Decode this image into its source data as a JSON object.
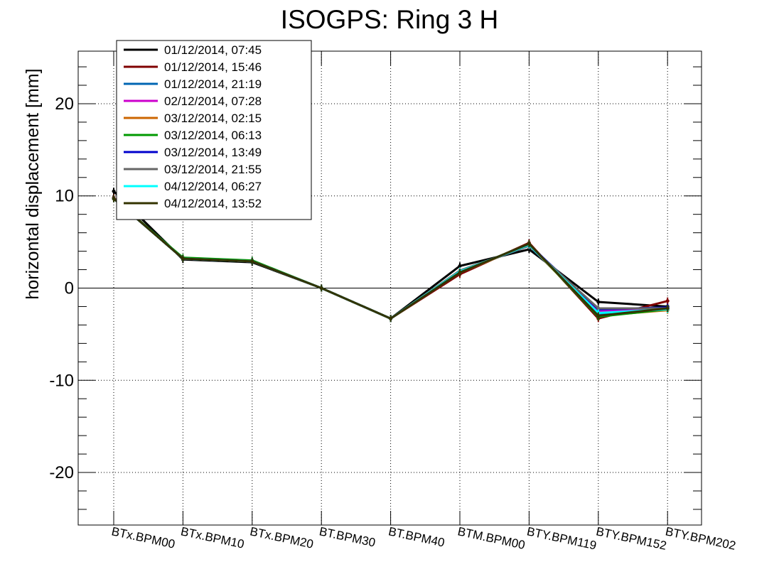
{
  "chart_data": {
    "type": "line",
    "title": "ISOGPS: Ring 3 H",
    "xlabel": "",
    "ylabel": "horizontal displacement [mm]",
    "ylim": [
      -25.7,
      25.7
    ],
    "yticks": [
      -20,
      -10,
      0,
      10,
      20
    ],
    "ytick_labels": [
      "-20",
      "-10",
      "0",
      "10",
      "20"
    ],
    "grid": true,
    "legend_position": "top-left",
    "categories": [
      "BTx.BPM00",
      "BTx.BPM10",
      "BTx.BPM20",
      "BT.BPM30",
      "BT.BPM40",
      "BTM.BPM00",
      "BTY.BPM119",
      "BTY.BPM152",
      "BTY.BPM202"
    ],
    "series": [
      {
        "name": "01/12/2014, 07:45",
        "color": "#000000",
        "values": [
          10.5,
          3.1,
          2.8,
          0.0,
          -3.3,
          2.4,
          4.2,
          -1.5,
          -2.0
        ]
      },
      {
        "name": "01/12/2014, 15:46",
        "color": "#800000",
        "values": [
          9.8,
          3.2,
          2.9,
          0.0,
          -3.3,
          1.5,
          4.9,
          -3.3,
          -1.4
        ]
      },
      {
        "name": "01/12/2014, 21:19",
        "color": "#0066b3",
        "values": [
          9.7,
          3.2,
          2.9,
          0.0,
          -3.3,
          1.8,
          4.6,
          -2.8,
          -2.2
        ]
      },
      {
        "name": "02/12/2014, 07:28",
        "color": "#cc00cc",
        "values": [
          9.7,
          3.2,
          2.9,
          0.0,
          -3.3,
          1.8,
          4.7,
          -2.5,
          -2.3
        ]
      },
      {
        "name": "03/12/2014, 02:15",
        "color": "#cc6600",
        "values": [
          9.7,
          3.2,
          2.9,
          0.0,
          -3.3,
          1.7,
          4.7,
          -3.0,
          -2.4
        ]
      },
      {
        "name": "03/12/2014, 06:13",
        "color": "#009900",
        "values": [
          9.7,
          3.3,
          3.0,
          0.0,
          -3.3,
          1.7,
          4.8,
          -3.1,
          -2.3
        ]
      },
      {
        "name": "03/12/2014, 13:49",
        "color": "#0000cc",
        "values": [
          9.7,
          3.2,
          2.9,
          0.0,
          -3.3,
          1.8,
          4.7,
          -2.3,
          -2.1
        ]
      },
      {
        "name": "03/12/2014, 21:55",
        "color": "#666666",
        "values": [
          9.7,
          3.2,
          2.9,
          0.0,
          -3.3,
          1.9,
          4.6,
          -2.2,
          -2.2
        ]
      },
      {
        "name": "04/12/2014, 06:27",
        "color": "#00ffff",
        "values": [
          9.7,
          3.2,
          2.9,
          0.0,
          -3.3,
          1.8,
          4.7,
          -2.7,
          -2.3
        ]
      },
      {
        "name": "04/12/2014, 13:52",
        "color": "#333300",
        "values": [
          9.7,
          3.2,
          2.9,
          0.0,
          -3.3,
          1.7,
          4.8,
          -3.0,
          -2.2
        ]
      }
    ]
  }
}
